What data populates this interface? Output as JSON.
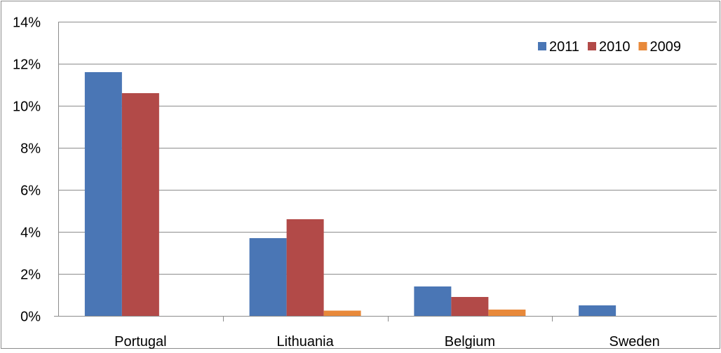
{
  "chart_data": {
    "type": "bar",
    "title": "",
    "xlabel": "",
    "ylabel": "",
    "categories": [
      "Portugal",
      "Lithuania",
      "Belgium",
      "Sweden"
    ],
    "series": [
      {
        "name": "2011",
        "values": [
          11.6,
          3.7,
          1.4,
          0.5
        ],
        "color": "#4a76b5"
      },
      {
        "name": "2010",
        "values": [
          10.6,
          4.6,
          0.9,
          0.0
        ],
        "color": "#b24a48"
      },
      {
        "name": "2009",
        "values": [
          0.0,
          0.25,
          0.3,
          0.0
        ],
        "color": "#e8893a"
      }
    ],
    "ylim": [
      0,
      14
    ],
    "yticks": [
      0,
      2,
      4,
      6,
      8,
      10,
      12,
      14
    ],
    "ytick_labels": [
      "0%",
      "2%",
      "4%",
      "6%",
      "8%",
      "10%",
      "12%",
      "14%"
    ],
    "grid": true,
    "legend_position": "top-right",
    "gridline_color": "#8c8c8c"
  }
}
